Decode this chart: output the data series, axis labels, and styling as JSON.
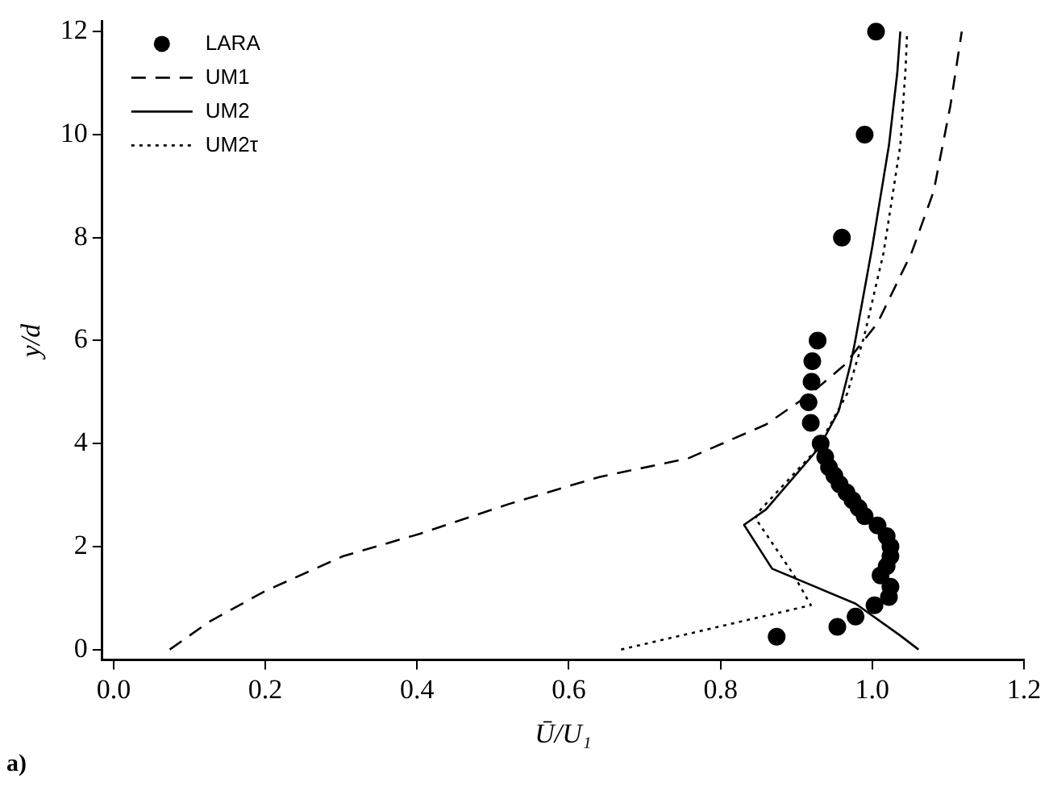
{
  "chart_data": {
    "type": "scatter",
    "xlabel": "Ū/U₁",
    "ylabel": "y/d",
    "xlim": [
      -0.015,
      1.2
    ],
    "ylim": [
      -0.2,
      12.2
    ],
    "xticks": [
      {
        "value": 0,
        "label": "0.0"
      },
      {
        "value": 0.2,
        "label": "0.2"
      },
      {
        "value": 0.4,
        "label": "0.4"
      },
      {
        "value": 0.6,
        "label": "0.6"
      },
      {
        "value": 0.8,
        "label": "0.8"
      },
      {
        "value": 1,
        "label": "1.0"
      },
      {
        "value": 1.2,
        "label": "1.2"
      }
    ],
    "yticks": [
      0,
      2,
      4,
      6,
      8,
      10,
      12
    ],
    "grid": false,
    "legend": "top left",
    "annotations": [
      "a)"
    ],
    "series": [
      {
        "name": "LARA",
        "type": "scatter",
        "marker": "circle",
        "color": "#000000",
        "x": [
          1.005,
          0.99,
          0.96,
          0.928,
          0.921,
          0.92,
          0.916,
          0.919,
          0.932,
          0.938,
          0.943,
          0.95,
          0.957,
          0.966,
          0.974,
          0.982,
          0.99,
          1.007,
          1.019,
          1.024,
          1.024,
          1.019,
          1.011,
          1.024,
          1.022,
          1.003,
          0.978,
          0.954,
          0.874
        ],
        "values": [
          12,
          10,
          8,
          6,
          5.6,
          5.2,
          4.8,
          4.4,
          4,
          3.74,
          3.54,
          3.38,
          3.21,
          3.05,
          2.9,
          2.75,
          2.59,
          2.41,
          2.2,
          2,
          1.81,
          1.62,
          1.44,
          1.22,
          1.02,
          0.86,
          0.64,
          0.44,
          0.25
        ]
      },
      {
        "name": "UM1",
        "type": "line",
        "line_style": "dashed",
        "marker": "none",
        "color": "#000000",
        "x": [
          0.074,
          0.125,
          0.199,
          0.302,
          0.404,
          0.522,
          0.64,
          0.757,
          0.86,
          0.919,
          0.963,
          1.007,
          1.052,
          1.081,
          1.103,
          1.118
        ],
        "values": [
          0,
          0.53,
          1.13,
          1.81,
          2.25,
          2.83,
          3.35,
          3.71,
          4.37,
          4.97,
          5.52,
          6.34,
          7.71,
          8.9,
          10.56,
          12
        ]
      },
      {
        "name": "UM2",
        "type": "line",
        "line_style": "solid",
        "marker": "none",
        "color": "#000000",
        "x": [
          1.061,
          1.037,
          0.978,
          0.868,
          0.831,
          0.86,
          0.93,
          0.956,
          0.971,
          0.977,
          1.0,
          1.022,
          1.033,
          1.037
        ],
        "values": [
          0,
          0.27,
          0.89,
          1.57,
          2.42,
          2.72,
          3.92,
          4.64,
          5.52,
          5.95,
          7.82,
          9.79,
          11.2,
          12
        ]
      },
      {
        "name": "UM2τ",
        "type": "line",
        "line_style": "dotted",
        "marker": "none",
        "color": "#000000",
        "x": [
          0.669,
          0.919,
          0.896,
          0.846,
          0.853,
          0.927,
          0.967,
          0.989,
          1.015,
          1.037,
          1.044,
          1.046
        ],
        "values": [
          0,
          0.86,
          1.46,
          2.55,
          2.72,
          3.89,
          4.97,
          6.06,
          7.71,
          9.79,
          11.3,
          12
        ]
      }
    ]
  }
}
